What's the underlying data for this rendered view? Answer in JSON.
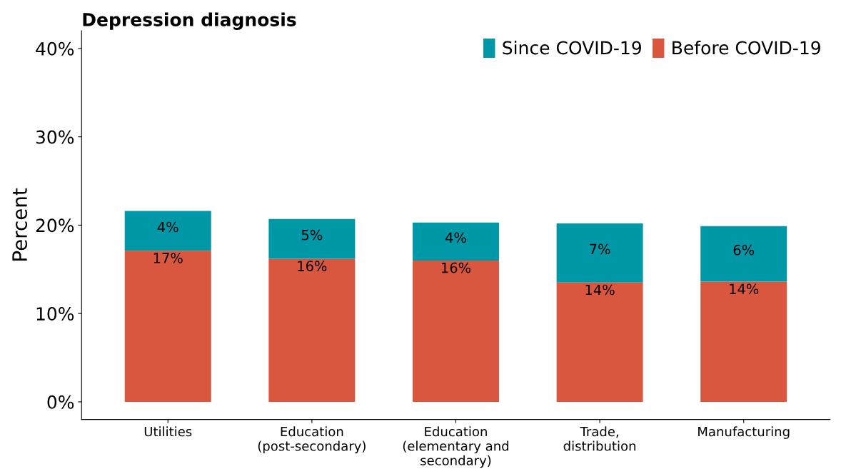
{
  "chart_data": {
    "type": "bar",
    "title": "Depression diagnosis",
    "ylabel": "Percent",
    "categories": [
      "Utilities",
      "Education\n(post-secondary)",
      "Education\n(elementary and\nsecondary)",
      "Trade,\ndistribution",
      "Manufacturing"
    ],
    "stacked": true,
    "series": [
      {
        "name": "Before COVID-19",
        "color": "#d9573f",
        "values": [
          17.1,
          16.2,
          16.0,
          13.5,
          13.6
        ],
        "value_labels": [
          "17%",
          "16%",
          "16%",
          "14%",
          "14%"
        ]
      },
      {
        "name": "Since COVID-19",
        "color": "#0097a7",
        "values": [
          4.5,
          4.5,
          4.3,
          6.7,
          6.3
        ],
        "value_labels": [
          "4%",
          "5%",
          "4%",
          "7%",
          "6%"
        ]
      }
    ],
    "ylim": [
      -2,
      42
    ],
    "yticks": [
      {
        "value": 0,
        "label": "0%"
      },
      {
        "value": 10,
        "label": "10%"
      },
      {
        "value": 20,
        "label": "20%"
      },
      {
        "value": 30,
        "label": "30%"
      },
      {
        "value": 40,
        "label": "40%"
      }
    ],
    "grid": false,
    "legend": "top right"
  }
}
